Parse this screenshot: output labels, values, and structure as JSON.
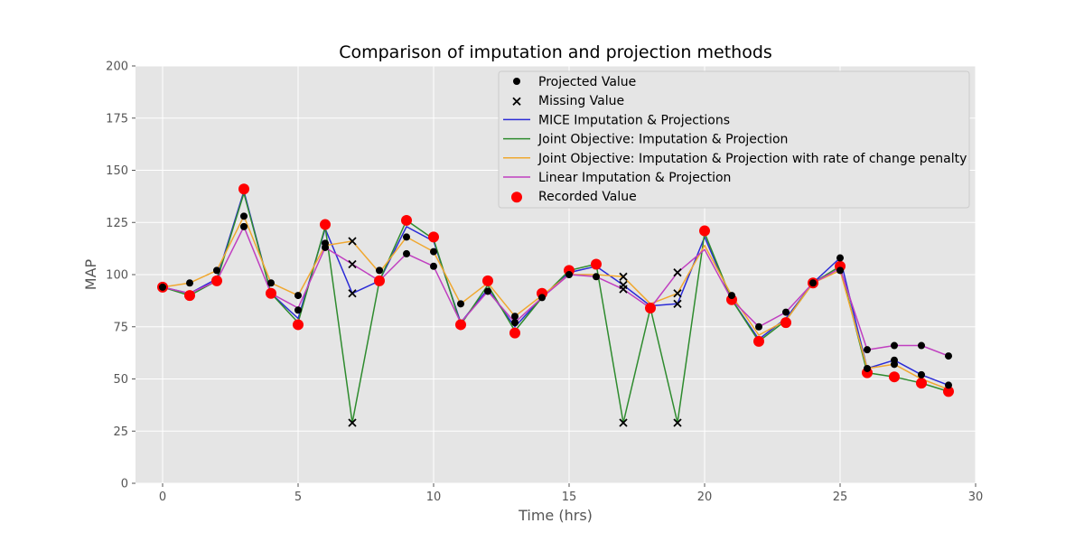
{
  "chart_data": {
    "type": "line",
    "title": "Comparison of imputation and projection methods",
    "xlabel": "Time (hrs)",
    "ylabel": "MAP",
    "xlim": [
      -1,
      30
    ],
    "ylim": [
      0,
      200
    ],
    "xticks": [
      0,
      5,
      10,
      15,
      20,
      25,
      30
    ],
    "yticks": [
      0,
      25,
      50,
      75,
      100,
      125,
      150,
      175,
      200
    ],
    "grid": true,
    "legend_position": "top-right",
    "x": [
      0,
      1,
      2,
      3,
      4,
      5,
      6,
      7,
      8,
      9,
      10,
      11,
      12,
      13,
      14,
      15,
      16,
      17,
      18,
      19,
      20,
      21,
      22,
      23,
      24,
      25,
      26,
      27,
      28,
      29
    ],
    "series": [
      {
        "name": "MICE Imputation & Projections",
        "color": "#2b2bd6",
        "values": [
          94,
          91,
          98,
          140,
          91,
          79,
          122,
          91,
          97,
          123,
          116,
          77,
          93,
          75,
          89,
          101,
          104,
          95,
          85,
          86,
          118,
          88,
          69,
          79,
          96,
          108,
          55,
          59,
          52,
          47
        ]
      },
      {
        "name": "Joint Objective: Imputation & Projection",
        "color": "#2e8b2e",
        "values": [
          94,
          90,
          97,
          139,
          91,
          77,
          123,
          29,
          97,
          126,
          117,
          76,
          95,
          73,
          89,
          102,
          105,
          29,
          84,
          29,
          120,
          88,
          68,
          78,
          96,
          104,
          53,
          51,
          48,
          44
        ]
      },
      {
        "name": "Joint Objective: Imputation & Projection with rate of change penalty",
        "color": "#f0a830",
        "values": [
          94,
          96,
          102,
          128,
          96,
          90,
          114,
          116,
          101,
          118,
          111,
          86,
          96,
          80,
          90,
          100,
          100,
          99,
          86,
          91,
          114,
          90,
          71,
          78,
          96,
          102,
          55,
          57,
          50,
          45
        ]
      },
      {
        "name": "Linear Imputation & Projection",
        "color": "#c03fc0",
        "values": [
          94,
          91,
          97,
          123,
          91,
          84,
          113,
          105,
          97,
          110,
          104,
          77,
          92,
          77,
          89,
          100,
          99,
          93,
          84,
          101,
          112,
          88,
          75,
          82,
          96,
          103,
          64,
          66,
          66,
          61
        ]
      }
    ],
    "recorded_values": {
      "name": "Recorded Value",
      "color": "#ff0000",
      "points": [
        [
          0,
          94
        ],
        [
          1,
          90
        ],
        [
          2,
          97
        ],
        [
          3,
          141
        ],
        [
          4,
          91
        ],
        [
          5,
          76
        ],
        [
          6,
          124
        ],
        [
          8,
          97
        ],
        [
          9,
          126
        ],
        [
          10,
          118
        ],
        [
          11,
          76
        ],
        [
          12,
          97
        ],
        [
          13,
          72
        ],
        [
          14,
          91
        ],
        [
          15,
          102
        ],
        [
          16,
          105
        ],
        [
          18,
          84
        ],
        [
          20,
          121
        ],
        [
          21,
          88
        ],
        [
          22,
          68
        ],
        [
          23,
          77
        ],
        [
          24,
          96
        ],
        [
          25,
          104
        ],
        [
          26,
          53
        ],
        [
          27,
          51
        ],
        [
          28,
          48
        ],
        [
          29,
          44
        ]
      ]
    },
    "projected_values": {
      "name": "Projected Value",
      "color": "#000000",
      "points": [
        [
          0,
          94
        ],
        [
          1,
          96
        ],
        [
          2,
          102
        ],
        [
          3,
          128
        ],
        [
          3,
          123
        ],
        [
          4,
          96
        ],
        [
          5,
          90
        ],
        [
          5,
          83
        ],
        [
          6,
          115
        ],
        [
          6,
          113
        ],
        [
          8,
          102
        ],
        [
          9,
          118
        ],
        [
          9,
          110
        ],
        [
          10,
          111
        ],
        [
          10,
          104
        ],
        [
          11,
          86
        ],
        [
          12,
          92
        ],
        [
          13,
          80
        ],
        [
          13,
          77
        ],
        [
          14,
          89
        ],
        [
          15,
          100
        ],
        [
          16,
          99
        ],
        [
          21,
          90
        ],
        [
          22,
          75
        ],
        [
          23,
          82
        ],
        [
          24,
          96
        ],
        [
          25,
          108
        ],
        [
          25,
          102
        ],
        [
          26,
          64
        ],
        [
          26,
          55
        ],
        [
          27,
          66
        ],
        [
          27,
          59
        ],
        [
          27,
          57
        ],
        [
          28,
          66
        ],
        [
          28,
          52
        ],
        [
          29,
          61
        ],
        [
          29,
          47
        ]
      ]
    },
    "missing_values": {
      "name": "Missing Value",
      "color": "#000000",
      "points": [
        [
          7,
          29
        ],
        [
          7,
          91
        ],
        [
          7,
          105
        ],
        [
          7,
          116
        ],
        [
          17,
          29
        ],
        [
          17,
          93
        ],
        [
          17,
          95
        ],
        [
          17,
          99
        ],
        [
          19,
          29
        ],
        [
          19,
          86
        ],
        [
          19,
          91
        ],
        [
          19,
          101
        ]
      ]
    },
    "legend": [
      {
        "label": "Projected Value",
        "kind": "dot",
        "color": "#000000"
      },
      {
        "label": "Missing Value",
        "kind": "x",
        "color": "#000000"
      },
      {
        "label": "MICE Imputation & Projections",
        "kind": "line",
        "color": "#2b2bd6"
      },
      {
        "label": "Joint Objective: Imputation & Projection",
        "kind": "line",
        "color": "#2e8b2e"
      },
      {
        "label": "Joint Objective: Imputation & Projection with rate of change penalty",
        "kind": "line",
        "color": "#f0a830"
      },
      {
        "label": "Linear Imputation & Projection",
        "kind": "line",
        "color": "#c03fc0"
      },
      {
        "label": "Recorded Value",
        "kind": "bigdot",
        "color": "#ff0000"
      }
    ]
  }
}
